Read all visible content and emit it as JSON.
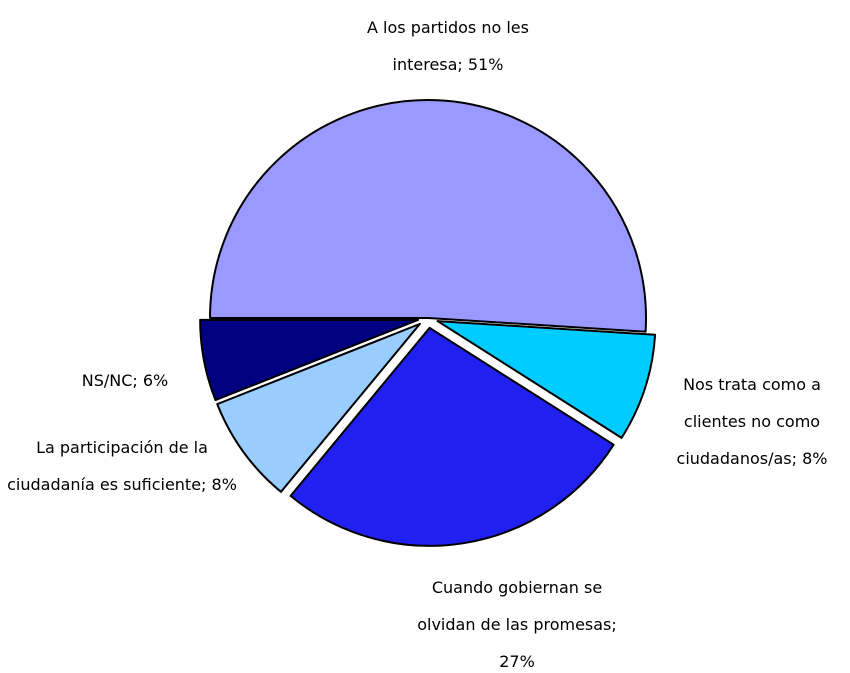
{
  "chart_data": {
    "type": "pie",
    "values": [
      51,
      8,
      27,
      8,
      6
    ],
    "value_labels": [
      "A los partidos no les interesa; 51%",
      "Nos trata como a clientes no como ciudadanos/as; 8%",
      "Cuando gobiernan se olvidan de las promesas; 27%",
      "La participación de la ciudadanía es suficiente; 8%",
      "NS/NC; 6%"
    ],
    "colors": [
      "#9999ff",
      "#00ccff",
      "#2020f0",
      "#99ccff",
      "#000080"
    ]
  }
}
